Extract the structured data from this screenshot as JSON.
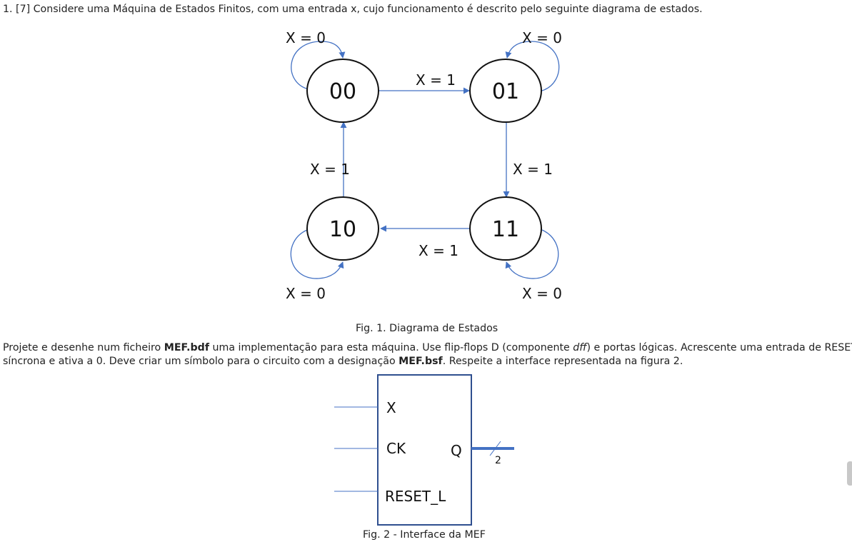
{
  "question": {
    "text": "1. [7] Considere uma Máquina de Estados Finitos, com uma entrada x, cujo funcionamento é descrito pelo seguinte diagrama de estados."
  },
  "state_diagram": {
    "states": [
      "00",
      "01",
      "10",
      "11"
    ],
    "transitions": [
      {
        "label": "X = 0"
      },
      {
        "label": "X = 0"
      },
      {
        "label": "X = 1"
      },
      {
        "label": "X = 1"
      },
      {
        "label": "X = 1"
      },
      {
        "label": "X = 1"
      },
      {
        "label": "X = 0"
      },
      {
        "label": "X = 0"
      }
    ],
    "caption": "Fig. 1. Diagrama de Estados"
  },
  "paragraph": {
    "line1_a": "Projete e desenhe num ficheiro ",
    "line1_b": "MEF.bdf",
    "line1_c": " uma implementação para esta máquina.  Use flip-flops D (componente ",
    "line1_d": "dff",
    "line1_e": ") e portas lógicas. Acrescente uma entrada de RESET",
    "line2_a": "síncrona e ativa a 0. Deve criar um símbolo para o circuito com a designação ",
    "line2_b": "MEF.bsf",
    "line2_c": ". Respeite a interface representada na figura 2."
  },
  "interface": {
    "inputs": [
      "X",
      "CK",
      "RESET_L"
    ],
    "output": "Q",
    "bus_width": "2",
    "caption": "Fig. 2 - Interface da MEF"
  },
  "colors": {
    "arrow": "#4472c4",
    "text": "#222222",
    "box_border": "#2f4f8f"
  }
}
